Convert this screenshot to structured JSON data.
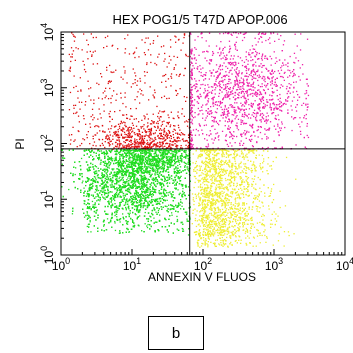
{
  "chart_data": {
    "type": "scatter",
    "title": "HEX POG1/5 T47D APOP.006",
    "xlabel": "ANNEXIN V FLUOS",
    "ylabel": "PI",
    "xscale": "log",
    "yscale": "log",
    "xlim": [
      1,
      10000
    ],
    "ylim": [
      1,
      10000
    ],
    "x_ticks": [
      {
        "base": "10",
        "exp": "0",
        "value": 1
      },
      {
        "base": "10",
        "exp": "1",
        "value": 10
      },
      {
        "base": "10",
        "exp": "2",
        "value": 100
      },
      {
        "base": "10",
        "exp": "3",
        "value": 1000
      },
      {
        "base": "10",
        "exp": "4",
        "value": 10000
      }
    ],
    "y_ticks": [
      {
        "base": "10",
        "exp": "0",
        "value": 1
      },
      {
        "base": "10",
        "exp": "1",
        "value": 10
      },
      {
        "base": "10",
        "exp": "2",
        "value": 100
      },
      {
        "base": "10",
        "exp": "3",
        "value": 1000
      },
      {
        "base": "10",
        "exp": "4",
        "value": 10000
      }
    ],
    "quadrant_gates": {
      "x": 65,
      "y": 80
    },
    "populations": [
      {
        "quadrant": "lower-left",
        "color": "#22dd22",
        "x_range": [
          1,
          65
        ],
        "y_range": [
          1,
          80
        ]
      },
      {
        "quadrant": "lower-right",
        "color": "#eeee33",
        "x_range": [
          65,
          2000
        ],
        "y_range": [
          1,
          80
        ]
      },
      {
        "quadrant": "upper-left",
        "color": "#dd1111",
        "x_range": [
          1,
          65
        ],
        "y_range": [
          80,
          10000
        ]
      },
      {
        "quadrant": "upper-right",
        "color": "#ee22aa",
        "x_range": [
          65,
          3000
        ],
        "y_range": [
          80,
          10000
        ]
      }
    ]
  },
  "panel_label": "b"
}
